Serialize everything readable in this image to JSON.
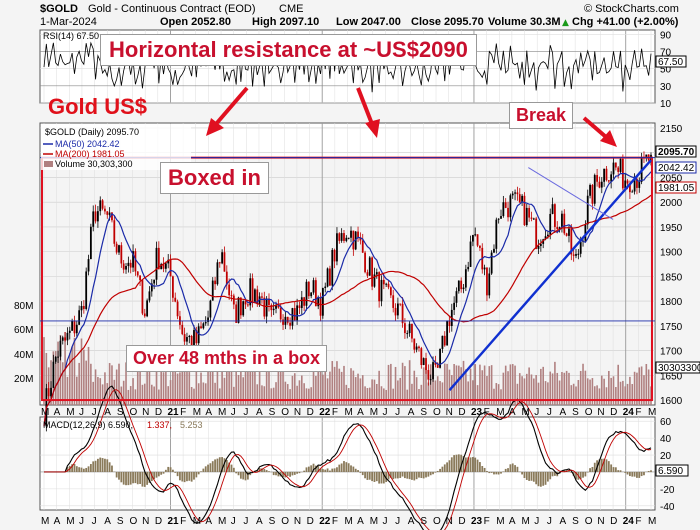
{
  "header": {
    "symbol": "$GOLD",
    "name": "Gold - Continuous Contract (EOD)",
    "exchange": "CME",
    "date": "1-Mar-2024",
    "open": "Open 2052.80",
    "high": "High 2097.10",
    "low": "Low 2047.00",
    "close": "Close 2095.70",
    "volume": "Volume 30.3M",
    "change": "Chg +41.00 (+2.00%)",
    "change_arrow": "▲",
    "credit": "© StockCharts.com"
  },
  "annotations": {
    "resistance": "Horizontal resistance at ~US$2090",
    "gold": "Gold US$",
    "boxed": "Boxed in",
    "break": "Break",
    "months": "Over 48 mths in a box"
  },
  "colors": {
    "price": "#000000",
    "up_candle": "#000000",
    "down_candle": "#c00000",
    "ma50": "#1a2aa8",
    "ma200": "#c00000",
    "box": "#e01020",
    "trendline": "#1030d0",
    "volume": "#b08080",
    "macd_hist": "#8a7a5a",
    "highlight": "#e0e0e0"
  },
  "chart_data": [
    {
      "type": "line",
      "panel": "rsi",
      "title": "RSI(14) 67.50",
      "ylim": [
        10,
        95
      ],
      "y_ticks": [
        10,
        30,
        50,
        70,
        90
      ],
      "last_label": "67.50",
      "overbought": 70,
      "oversold": 30
    },
    {
      "type": "candlestick",
      "panel": "price",
      "legend": [
        "$GOLD (Daily) 2095.70",
        "MA(50) 2042.42",
        "MA(200) 1981.05",
        "Volume 30,303,300"
      ],
      "ylim": [
        1590,
        2160
      ],
      "y_ticks": [
        1600,
        1650,
        1700,
        1750,
        1800,
        1850,
        1900,
        1950,
        2000,
        2050,
        2100,
        2150
      ],
      "price_labels": [
        "2095.70",
        "2042.42",
        "1981.05"
      ],
      "volume_ticks": [
        "20M",
        "40M",
        "60M",
        "80M"
      ],
      "volume_label": "30303300",
      "x_ticks": [
        "M",
        "A",
        "M",
        "J",
        "J",
        "A",
        "S",
        "O",
        "N",
        "D",
        "21",
        "F",
        "M",
        "A",
        "M",
        "J",
        "J",
        "A",
        "S",
        "O",
        "N",
        "D",
        "22",
        "F",
        "M",
        "A",
        "M",
        "J",
        "J",
        "A",
        "S",
        "O",
        "N",
        "D",
        "23",
        "F",
        "M",
        "A",
        "M",
        "J",
        "J",
        "A",
        "S",
        "O",
        "N",
        "D",
        "24",
        "F",
        "M"
      ],
      "box_range": [
        1600,
        2090
      ],
      "support_line": 1760,
      "resistance_line": 2090,
      "trendline": {
        "start": [
          "2022-11-03",
          1620
        ],
        "end": [
          "2024-03-01",
          2085
        ]
      },
      "monthly_close": [
        [
          "2020-03",
          1577
        ],
        [
          "2020-04",
          1694
        ],
        [
          "2020-05",
          1730
        ],
        [
          "2020-06",
          1780
        ],
        [
          "2020-07",
          1985
        ],
        [
          "2020-08",
          1970
        ],
        [
          "2020-09",
          1887
        ],
        [
          "2020-10",
          1879
        ],
        [
          "2020-11",
          1780
        ],
        [
          "2020-12",
          1895
        ],
        [
          "2021-01",
          1850
        ],
        [
          "2021-02",
          1730
        ],
        [
          "2021-03",
          1715
        ],
        [
          "2021-04",
          1768
        ],
        [
          "2021-05",
          1905
        ],
        [
          "2021-06",
          1770
        ],
        [
          "2021-07",
          1817
        ],
        [
          "2021-08",
          1815
        ],
        [
          "2021-09",
          1757
        ],
        [
          "2021-10",
          1784
        ],
        [
          "2021-11",
          1776
        ],
        [
          "2021-12",
          1829
        ],
        [
          "2022-01",
          1796
        ],
        [
          "2022-02",
          1901
        ],
        [
          "2022-03",
          1949
        ],
        [
          "2022-04",
          1911
        ],
        [
          "2022-05",
          1848
        ],
        [
          "2022-06",
          1807
        ],
        [
          "2022-07",
          1781
        ],
        [
          "2022-08",
          1726
        ],
        [
          "2022-09",
          1672
        ],
        [
          "2022-10",
          1640
        ],
        [
          "2022-11",
          1768
        ],
        [
          "2022-12",
          1826
        ],
        [
          "2023-01",
          1942
        ],
        [
          "2023-02",
          1836
        ],
        [
          "2023-03",
          1986
        ],
        [
          "2023-04",
          1999
        ],
        [
          "2023-05",
          1982
        ],
        [
          "2023-06",
          1929
        ],
        [
          "2023-07",
          1970
        ],
        [
          "2023-08",
          1966
        ],
        [
          "2023-09",
          1870
        ],
        [
          "2023-10",
          1995
        ],
        [
          "2023-11",
          2057
        ],
        [
          "2023-12",
          2072
        ],
        [
          "2024-01",
          2048
        ],
        [
          "2024-02",
          2054
        ],
        [
          "2024-03",
          2096
        ]
      ]
    },
    {
      "type": "line",
      "panel": "macd",
      "title": "MACD(12,26,9) 6.590,",
      "signal_label": "1.337,",
      "hist_label": "5.253",
      "ylim": [
        -45,
        65
      ],
      "y_ticks": [
        -40,
        -20,
        0,
        20,
        40,
        60
      ],
      "last_label": "6.590"
    }
  ]
}
